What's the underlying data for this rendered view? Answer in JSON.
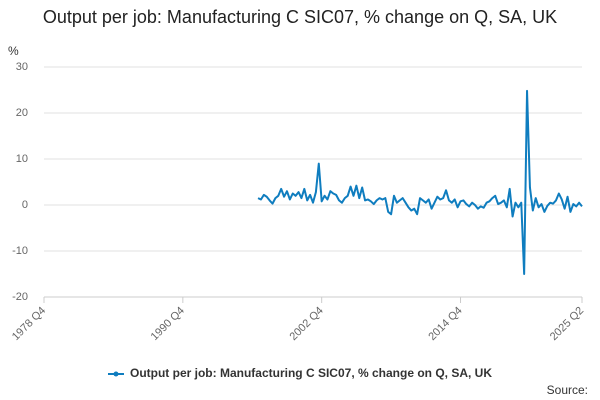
{
  "chart_data": {
    "type": "line",
    "title": "Output per job: Manufacturing C SIC07, % change on Q, SA, UK",
    "y_label": "%",
    "source": "Source:",
    "categories": [
      "1978 Q4",
      null,
      null,
      null,
      null,
      null,
      null,
      null,
      null,
      null,
      null,
      null,
      null,
      null,
      null,
      null,
      null,
      null,
      null,
      null,
      null,
      null,
      null,
      null,
      null,
      null,
      null,
      null,
      null,
      null,
      null,
      null,
      null,
      null,
      null,
      null,
      null,
      null,
      null,
      null,
      null,
      null,
      null,
      null,
      null,
      null,
      null,
      null,
      "1990 Q4",
      null,
      null,
      null,
      null,
      null,
      null,
      null,
      null,
      null,
      null,
      null,
      null,
      null,
      null,
      null,
      null,
      null,
      null,
      null,
      null,
      null,
      null,
      null,
      null,
      null,
      null,
      null,
      null,
      null,
      null,
      null,
      null,
      null,
      null,
      null,
      null,
      null,
      null,
      null,
      null,
      null,
      null,
      null,
      null,
      null,
      null,
      null,
      "2002 Q4",
      null,
      null,
      null,
      null,
      null,
      null,
      null,
      null,
      null,
      null,
      null,
      null,
      null,
      null,
      null,
      null,
      null,
      null,
      null,
      null,
      null,
      null,
      null,
      null,
      null,
      null,
      null,
      null,
      null,
      null,
      null,
      null,
      null,
      null,
      null,
      null,
      null,
      null,
      null,
      null,
      null,
      null,
      null,
      null,
      null,
      null,
      null,
      "2014 Q4",
      null,
      null,
      null,
      null,
      null,
      null,
      null,
      null,
      null,
      null,
      null,
      null,
      null,
      null,
      null,
      null,
      null,
      null,
      null,
      null,
      null,
      null,
      null,
      null,
      null,
      null,
      null,
      null,
      null,
      null,
      null,
      null,
      null,
      null,
      null,
      null,
      null,
      null,
      null,
      null,
      null,
      "2025 Q2"
    ],
    "series": [
      {
        "name": "Output per job: Manufacturing C SIC07, % change on Q, SA, UK",
        "color": "#0f7dbf",
        "values": [
          null,
          null,
          null,
          null,
          null,
          null,
          null,
          null,
          null,
          null,
          null,
          null,
          null,
          null,
          null,
          null,
          null,
          null,
          null,
          null,
          null,
          null,
          null,
          null,
          null,
          null,
          null,
          null,
          null,
          null,
          null,
          null,
          null,
          null,
          null,
          null,
          null,
          null,
          null,
          null,
          null,
          null,
          null,
          null,
          null,
          null,
          null,
          null,
          null,
          null,
          null,
          null,
          null,
          null,
          null,
          null,
          null,
          null,
          null,
          null,
          null,
          null,
          null,
          null,
          null,
          null,
          null,
          null,
          null,
          null,
          null,
          null,
          null,
          null,
          1.5,
          1.2,
          2.2,
          1.8,
          1.0,
          0.3,
          1.5,
          2.0,
          3.5,
          1.8,
          3.0,
          1.2,
          2.5,
          2.0,
          2.8,
          1.5,
          3.5,
          1.0,
          2.2,
          0.5,
          2.8,
          9.0,
          0.8,
          2.0,
          1.2,
          3.0,
          2.5,
          2.2,
          1.0,
          0.5,
          1.5,
          2.0,
          4.0,
          2.0,
          4.2,
          1.5,
          3.8,
          1.0,
          1.2,
          0.8,
          0.2,
          1.0,
          1.5,
          1.2,
          1.5,
          -1.5,
          -2.0,
          2.0,
          0.5,
          1.0,
          1.5,
          0.5,
          -0.5,
          -1.2,
          -0.8,
          -2.0,
          1.5,
          1.0,
          0.5,
          1.2,
          -0.8,
          0.5,
          1.8,
          1.2,
          1.5,
          3.2,
          1.0,
          0.5,
          1.2,
          -0.5,
          0.8,
          1.0,
          0.2,
          -0.3,
          0.5,
          0.0,
          -0.8,
          -0.3,
          -0.6,
          0.5,
          0.8,
          1.5,
          2.0,
          0.2,
          0.5,
          1.0,
          -0.5,
          3.5,
          -2.5,
          0.5,
          -0.5,
          0.5,
          -15.0,
          24.8,
          3.8,
          -1.2,
          1.5,
          -0.5,
          0.2,
          -1.5,
          -0.2,
          0.5,
          0.3,
          1.0,
          2.5,
          1.2,
          -0.8,
          1.8,
          -1.5,
          0.2,
          -0.3,
          0.5,
          -0.3
        ]
      }
    ],
    "ylim": [
      -20,
      30
    ],
    "yticks": [
      -20,
      -10,
      0,
      10,
      20,
      30
    ],
    "grid": true
  }
}
